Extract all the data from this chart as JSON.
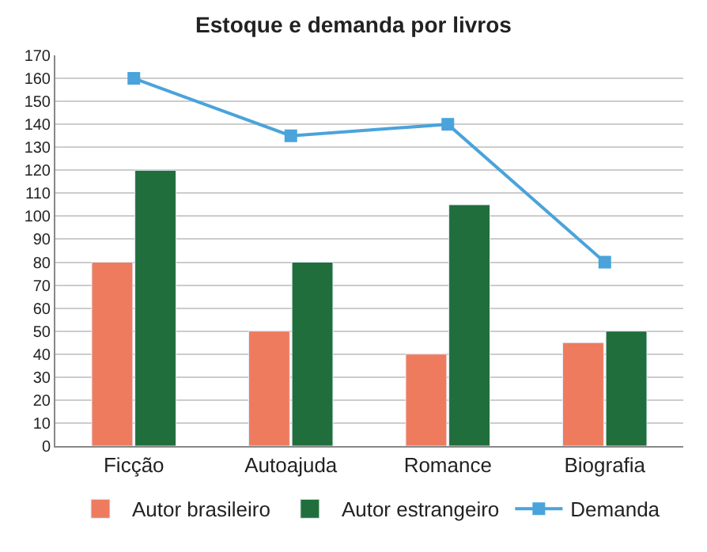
{
  "chart_data": {
    "type": "bar",
    "title": "Estoque e demanda por livros",
    "categories": [
      "Ficção",
      "Autoajuda",
      "Romance",
      "Biografia"
    ],
    "series": [
      {
        "name": "Autor brasileiro",
        "color": "#ef7b5f",
        "values": [
          80,
          50,
          40,
          45
        ]
      },
      {
        "name": "Autor estrangeiro",
        "color": "#1f6e3c",
        "values": [
          120,
          80,
          105,
          50
        ]
      },
      {
        "name": "Demanda",
        "type": "line",
        "color": "#4aa3db",
        "values": [
          160,
          135,
          140,
          80
        ]
      }
    ],
    "ylim": [
      0,
      170
    ],
    "yticks": [
      0,
      10,
      20,
      30,
      40,
      50,
      60,
      70,
      80,
      90,
      100,
      110,
      120,
      130,
      140,
      150,
      160,
      170
    ],
    "grid": "y",
    "legend": "bottom",
    "marker": "square"
  }
}
